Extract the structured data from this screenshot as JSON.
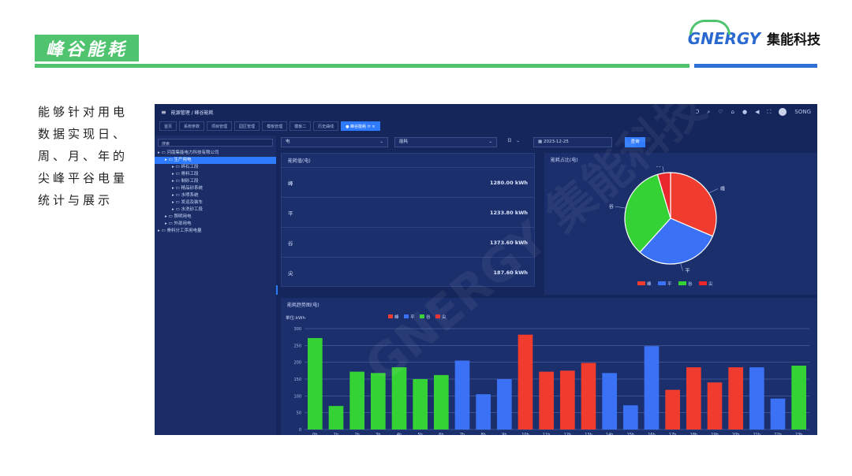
{
  "slide": {
    "title": "峰谷能耗",
    "logo_mark": "GNERGY",
    "logo_cn": "集能科技",
    "description": "能够针对用电数据实现日、周、月、年的尖峰平谷电量统计与展示"
  },
  "app": {
    "breadcrumb": "能源管理 / 峰谷能耗",
    "user": "SONG",
    "tabs": [
      "首页",
      "系统参数",
      "项目管理",
      "园区管理",
      "模板管理",
      "模板二",
      "历史曲线",
      "峰谷能耗"
    ],
    "active_tab_index": 7,
    "search_placeholder": "搜索",
    "tree": [
      {
        "label": "河南集能电力科技有限公司",
        "level": 0
      },
      {
        "label": "生产用电",
        "level": 1,
        "active": true
      },
      {
        "label": "碎石工段",
        "level": 2
      },
      {
        "label": "骨料工段",
        "level": 2
      },
      {
        "label": "制砂工段",
        "level": 2
      },
      {
        "label": "精品砂系统",
        "level": 2
      },
      {
        "label": "水喷系统",
        "level": 2
      },
      {
        "label": "发运及装车",
        "level": 2
      },
      {
        "label": "水洗砂工段",
        "level": 2
      },
      {
        "label": "照明用电",
        "level": 1
      },
      {
        "label": "外部用电",
        "level": 1
      },
      {
        "label": "骨料分工序用电量",
        "level": 0
      }
    ],
    "filters": {
      "type": "电",
      "metric": "能耗",
      "period": "日",
      "date": "2023-12-25",
      "query_label": "查询"
    },
    "energy_panel": {
      "title": "能耗值(电)",
      "rows": [
        {
          "label": "峰",
          "value": "1280.00 kWh"
        },
        {
          "label": "平",
          "value": "1233.80 kWh"
        },
        {
          "label": "谷",
          "value": "1373.60 kWh"
        },
        {
          "label": "尖",
          "value": "187.60 kWh"
        }
      ]
    },
    "pie_panel": {
      "title": "能耗占比(电)"
    },
    "bar_panel": {
      "title": "能耗趋势图(电)",
      "unit": "单位:kWh"
    }
  },
  "chart_data": [
    {
      "type": "pie",
      "title": "能耗占比(电)",
      "categories": [
        "峰",
        "平",
        "谷",
        "尖"
      ],
      "values": [
        1280.0,
        1233.8,
        1373.6,
        187.6
      ],
      "colors": [
        "#f03c2e",
        "#3b72f5",
        "#35d235",
        "#e8282c"
      ],
      "legend": "bottom"
    },
    {
      "type": "bar",
      "title": "能耗趋势图(电)",
      "ylabel": "单位:kWh",
      "ylim": [
        0,
        300
      ],
      "yticks": [
        0,
        50,
        100,
        150,
        200,
        250,
        300
      ],
      "categories": [
        "0h",
        "1h",
        "2h",
        "3h",
        "4h",
        "5h",
        "6h",
        "7h",
        "8h",
        "9h",
        "10h",
        "11h",
        "12h",
        "13h",
        "14h",
        "15h",
        "16h",
        "17h",
        "18h",
        "19h",
        "20h",
        "21h",
        "22h",
        "23h"
      ],
      "values": [
        272,
        70,
        172,
        168,
        185,
        150,
        162,
        205,
        105,
        150,
        282,
        172,
        175,
        198,
        168,
        72,
        248,
        118,
        185,
        140,
        185,
        185,
        92,
        190
      ],
      "bar_types": [
        "谷",
        "谷",
        "谷",
        "谷",
        "谷",
        "谷",
        "谷",
        "平",
        "平",
        "平",
        "峰",
        "峰",
        "峰",
        "峰",
        "平",
        "平",
        "平",
        "峰",
        "峰",
        "峰",
        "峰",
        "平",
        "平",
        "谷"
      ],
      "legend_items": [
        "峰",
        "平",
        "谷",
        "尖"
      ],
      "colors": {
        "峰": "#f03c2e",
        "平": "#3b72f5",
        "谷": "#35d235",
        "尖": "#e8282c"
      },
      "grid": true,
      "legend": "top"
    }
  ]
}
